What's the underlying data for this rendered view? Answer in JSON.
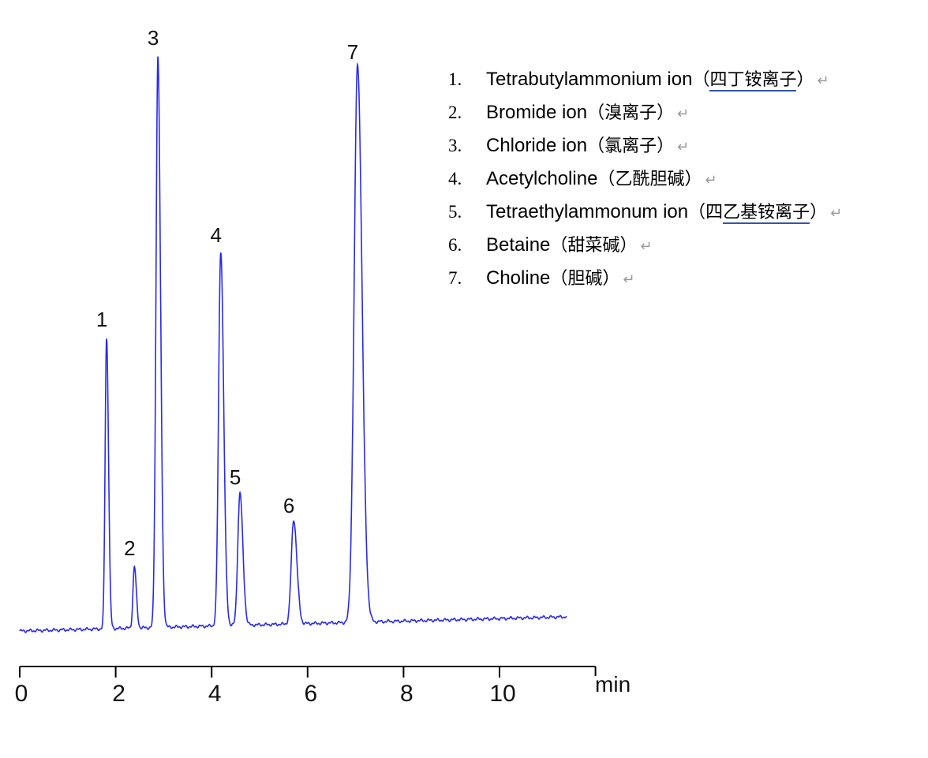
{
  "chart_data": {
    "type": "line",
    "xlabel": "min",
    "xlim": [
      0,
      12
    ],
    "x_ticks": [
      "0",
      "2",
      "4",
      "6",
      "8",
      "10"
    ],
    "grid": false,
    "color": "#2a2aee",
    "baseline": {
      "start": 0,
      "end": 18,
      "x_end": 11.4
    },
    "peaks": [
      {
        "label": "1",
        "rt": 1.81,
        "height": 368,
        "width": 0.03
      },
      {
        "label": "2",
        "rt": 2.39,
        "height": 78,
        "width": 0.03
      },
      {
        "label": "3",
        "rt": 2.88,
        "height": 725,
        "width": 0.04
      },
      {
        "label": "4",
        "rt": 4.19,
        "height": 475,
        "width": 0.045
      },
      {
        "label": "5",
        "rt": 4.59,
        "height": 168,
        "width": 0.045
      },
      {
        "label": "6",
        "rt": 5.71,
        "height": 132,
        "width": 0.05
      },
      {
        "label": "7",
        "rt": 7.04,
        "height": 707,
        "width": 0.07
      }
    ]
  },
  "legend": [
    {
      "num": "1.",
      "name": "Tetrabutylammonium ion",
      "open": "（",
      "cn_pre": "",
      "cn_ul": "四丁铵离子",
      "close": "）"
    },
    {
      "num": "2.",
      "name": "Bromide ion",
      "open": "（",
      "cn_pre": "溴离子",
      "cn_ul": "",
      "close": "）"
    },
    {
      "num": "3.",
      "name": "Chloride ion",
      "open": "（",
      "cn_pre": "氯离子",
      "cn_ul": "",
      "close": "）"
    },
    {
      "num": "4.",
      "name": "Acetylcholine",
      "open": "（",
      "cn_pre": "乙酰胆碱",
      "cn_ul": "",
      "close": "）"
    },
    {
      "num": "5.",
      "name": "Tetraethylammonum ion",
      "open": "（",
      "cn_pre": "四",
      "cn_ul": "乙基铵离子",
      "close": "）"
    },
    {
      "num": "6.",
      "name": "Betaine",
      "open": "（",
      "cn_pre": "甜菜碱",
      "cn_ul": "",
      "close": "）"
    },
    {
      "num": "7.",
      "name": "Choline",
      "open": "（",
      "cn_pre": "胆碱",
      "cn_ul": "",
      "close": "）"
    }
  ],
  "return_mark": "↵"
}
